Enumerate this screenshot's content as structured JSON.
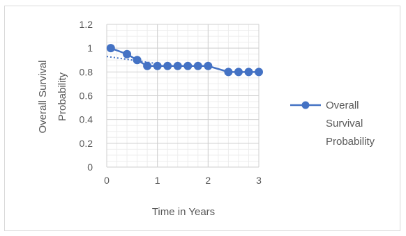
{
  "chart_data": {
    "type": "line",
    "xlabel": "Time in Years",
    "ylabel_lines": [
      "Overall Survival",
      "Probability"
    ],
    "xlim": [
      0,
      3
    ],
    "ylim": [
      0,
      1.2
    ],
    "xticks": [
      0,
      1,
      2,
      3
    ],
    "yticks": [
      0,
      0.2,
      0.4,
      0.6,
      0.8,
      1,
      1.2
    ],
    "x_tick_labels": [
      "0",
      "1",
      "2",
      "3"
    ],
    "y_tick_labels": [
      "0",
      "0.2",
      "0.4",
      "0.6",
      "0.8",
      "1",
      "1.2"
    ],
    "grid": true,
    "minor_grid": true,
    "legend_position": "right",
    "legend_lines": [
      "Overall",
      "Survival",
      "Probability"
    ],
    "series": [
      {
        "name": "Overall Survival Probability",
        "color": "#4472c4",
        "x": [
          0.08,
          0.4,
          0.6,
          0.8,
          1.0,
          1.2,
          1.4,
          1.6,
          1.8,
          2.0,
          2.4,
          2.6,
          2.8,
          3.0
        ],
        "y": [
          1.0,
          0.95,
          0.9,
          0.85,
          0.85,
          0.85,
          0.85,
          0.85,
          0.85,
          0.85,
          0.8,
          0.8,
          0.8,
          0.8
        ]
      }
    ],
    "trendline": {
      "style": "dotted",
      "color": "#4472c4",
      "x": [
        0.0,
        1.0
      ],
      "y": [
        0.93,
        0.87
      ]
    }
  }
}
